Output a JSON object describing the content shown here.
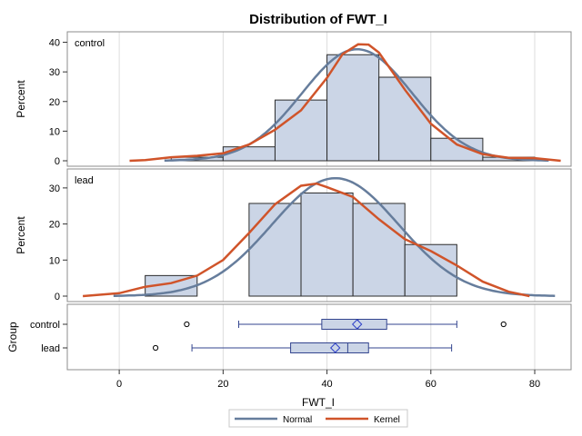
{
  "chart_data": {
    "type": "histogram-panel",
    "title": "Distribution of FWT_I",
    "xlabel": "FWT_I",
    "xlim": [
      -10,
      87
    ],
    "xticks": [
      0,
      20,
      40,
      60,
      80
    ],
    "colors": {
      "bar_fill": "#cbd5e6",
      "bar_edge": "#2b2b2b",
      "normal": "#667d9c",
      "kernel": "#d0542a",
      "box_edge": "#33458f",
      "grid": "#dddddd"
    },
    "panels": [
      {
        "label": "control",
        "ylabel": "Percent",
        "ylim": [
          0,
          42
        ],
        "yticks": [
          0,
          10,
          20,
          30,
          40
        ],
        "bins": [
          {
            "x0": 10,
            "x1": 20,
            "percent": 1.2
          },
          {
            "x0": 20,
            "x1": 30,
            "percent": 4.7
          },
          {
            "x0": 30,
            "x1": 40,
            "percent": 20.5
          },
          {
            "x0": 40,
            "x1": 50,
            "percent": 35.8
          },
          {
            "x0": 50,
            "x1": 60,
            "percent": 28.2
          },
          {
            "x0": 60,
            "x1": 70,
            "percent": 7.6
          },
          {
            "x0": 70,
            "x1": 80,
            "percent": 1.2
          }
        ],
        "normal": {
          "mean": 45.8,
          "sd": 10.6
        },
        "kernel": [
          [
            2,
            0
          ],
          [
            5,
            0.2
          ],
          [
            10,
            1.2
          ],
          [
            15,
            1.7
          ],
          [
            20,
            2.5
          ],
          [
            25,
            5.5
          ],
          [
            30,
            10.5
          ],
          [
            35,
            17
          ],
          [
            40,
            28
          ],
          [
            43,
            36
          ],
          [
            46,
            39.3
          ],
          [
            48,
            39.2
          ],
          [
            50,
            36.5
          ],
          [
            55,
            24
          ],
          [
            60,
            12.5
          ],
          [
            65,
            5.5
          ],
          [
            70,
            2.2
          ],
          [
            75,
            1
          ],
          [
            80,
            0.9
          ],
          [
            85,
            0
          ]
        ]
      },
      {
        "label": "lead",
        "ylabel": "Percent",
        "ylim": [
          0,
          34
        ],
        "yticks": [
          0,
          10,
          20,
          30
        ],
        "bins": [
          {
            "x0": 5,
            "x1": 15,
            "percent": 5.7
          },
          {
            "x0": 25,
            "x1": 35,
            "percent": 25.7
          },
          {
            "x0": 35,
            "x1": 45,
            "percent": 28.6
          },
          {
            "x0": 45,
            "x1": 55,
            "percent": 25.7
          },
          {
            "x0": 55,
            "x1": 65,
            "percent": 14.3
          }
        ],
        "normal": {
          "mean": 41.6,
          "sd": 12.2
        },
        "kernel": [
          [
            -7,
            0
          ],
          [
            0,
            0.8
          ],
          [
            5,
            2.6
          ],
          [
            10,
            3.6
          ],
          [
            15,
            5.7
          ],
          [
            20,
            10
          ],
          [
            25,
            17.5
          ],
          [
            30,
            25.5
          ],
          [
            35,
            30.6
          ],
          [
            38,
            31.2
          ],
          [
            40,
            30.2
          ],
          [
            45,
            27.5
          ],
          [
            50,
            21.3
          ],
          [
            55,
            15.8
          ],
          [
            60,
            12.5
          ],
          [
            65,
            8.5
          ],
          [
            70,
            4
          ],
          [
            75,
            1.2
          ],
          [
            79,
            0
          ]
        ]
      }
    ],
    "boxplot": {
      "ylabel": "Group",
      "groups": [
        {
          "name": "control",
          "min": 23,
          "q1": 39,
          "median": 46,
          "mean": 45.8,
          "q3": 51.5,
          "max": 65,
          "outliers": [
            13,
            74
          ]
        },
        {
          "name": "lead",
          "min": 14,
          "q1": 33,
          "median": 44,
          "mean": 41.6,
          "q3": 48,
          "max": 64,
          "outliers": [
            7
          ]
        }
      ]
    },
    "legend": {
      "position": "bottom",
      "items": [
        {
          "name": "Normal",
          "color": "#667d9c"
        },
        {
          "name": "Kernel",
          "color": "#d0542a"
        }
      ]
    }
  }
}
